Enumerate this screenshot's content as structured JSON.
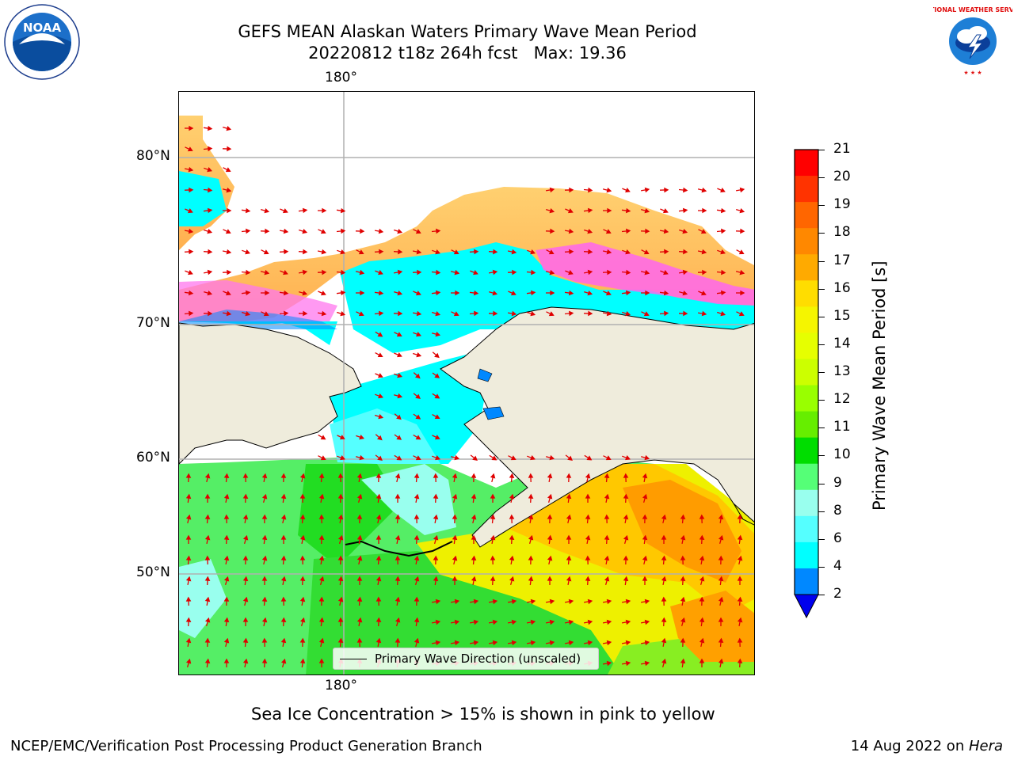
{
  "title": {
    "line1": "GEFS MEAN Alaskan Waters Primary Wave Mean Period",
    "line2": "20220812 t18z 264h fcst   Max: 19.36"
  },
  "map": {
    "lon_label_top": "180°",
    "lon_label_bottom": "180°",
    "lat_labels": [
      "80°N",
      "70°N",
      "60°N",
      "50°N"
    ],
    "legend_text": "Primary Wave Direction (unscaled)",
    "colors": {
      "land": "#efecdc",
      "sea_ice": "#ffc060",
      "sea_ice_edge": "#ff55dd",
      "arrow": "#e00000",
      "grid": "#b0b0b0"
    }
  },
  "colorbar": {
    "label": "Primary Wave Mean Period [s]",
    "ticks": [
      "21",
      "20",
      "19",
      "18",
      "17",
      "16",
      "15",
      "14",
      "13",
      "12",
      "11",
      "10",
      "9",
      "8",
      "6",
      "4",
      "2"
    ],
    "colors": [
      "#ff0000",
      "#ff3300",
      "#ff6600",
      "#ff8800",
      "#ffaa00",
      "#ffdd00",
      "#f5f500",
      "#e6ff00",
      "#ccff00",
      "#99ff00",
      "#66ee00",
      "#00dd00",
      "#55ff77",
      "#99ffee",
      "#55ffff",
      "#00ffff",
      "#0088ff",
      "#0000ee"
    ]
  },
  "notes": {
    "sea_ice": "Sea Ice Concentration > 15% is shown in pink to yellow"
  },
  "footer": {
    "left": "NCEP/EMC/Verification Post Processing Product Generation Branch",
    "right_date": "14 Aug 2022 on ",
    "right_host": "Hera"
  },
  "logos": {
    "noaa": "NOAA",
    "nws_text": "NATIONAL WEATHER SERVICE"
  }
}
